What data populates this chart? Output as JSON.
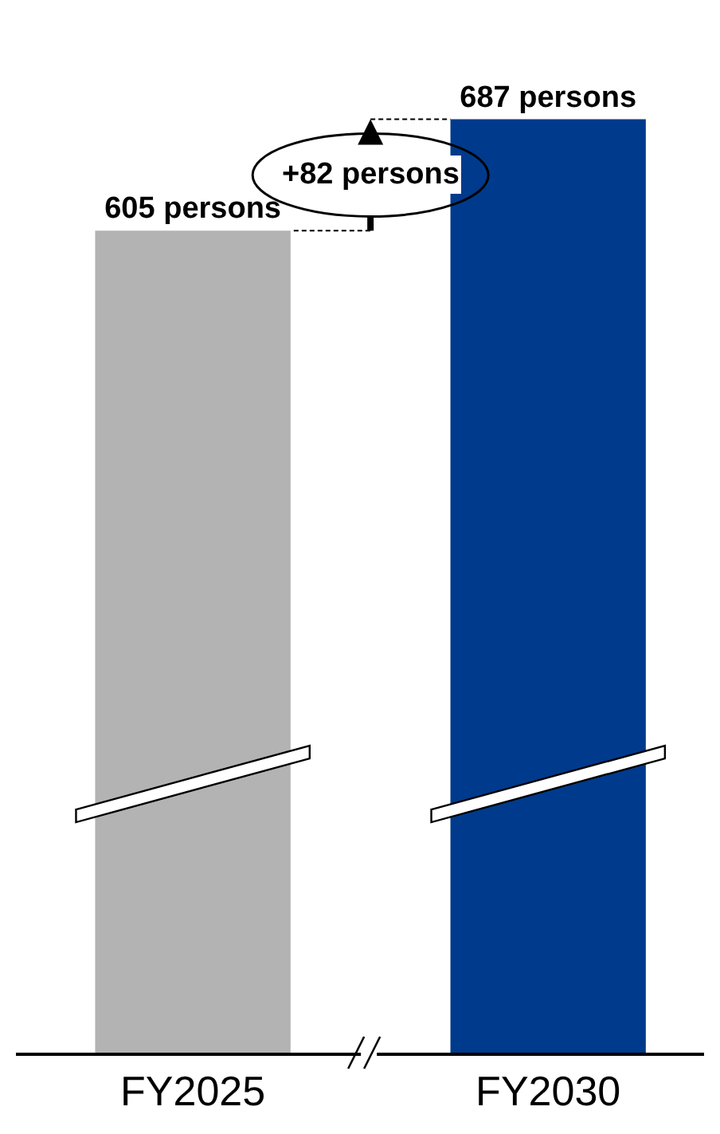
{
  "chart_data": {
    "type": "bar",
    "categories": [
      "FY2025",
      "FY2030"
    ],
    "values": [
      605,
      687
    ],
    "colors": [
      "#b3b3b3",
      "#003a8c"
    ],
    "value_labels": [
      "605 persons",
      "687 persons"
    ],
    "tick_labels": "x",
    "grid": false,
    "legend": false,
    "annotations": [
      "+82 persons"
    ]
  }
}
